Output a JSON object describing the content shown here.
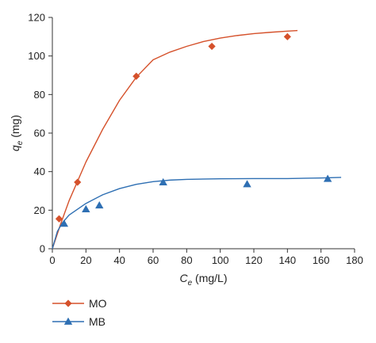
{
  "chart_data": {
    "type": "scatter",
    "title": "",
    "xlabel": "C_e (mg/L)",
    "xlabel_symbol": "C",
    "xlabel_subscript": "e",
    "xlabel_unit": " (mg/L)",
    "ylabel": "q_e (mg)",
    "ylabel_symbol": "q",
    "ylabel_subscript": "e",
    "ylabel_unit": " (mg)",
    "xlim": [
      0,
      180
    ],
    "ylim": [
      0,
      120
    ],
    "x_ticks": [
      0,
      20,
      40,
      60,
      80,
      100,
      120,
      140,
      160,
      180
    ],
    "y_ticks": [
      0,
      20,
      40,
      60,
      80,
      100,
      120
    ],
    "grid": false,
    "legend_position": "bottom-left",
    "series": [
      {
        "name": "MO",
        "color": "#d5512b",
        "marker": "diamond",
        "points": [
          {
            "x": 4,
            "y": 15.5
          },
          {
            "x": 15,
            "y": 34.5
          },
          {
            "x": 50,
            "y": 89.5
          },
          {
            "x": 95,
            "y": 105
          },
          {
            "x": 140,
            "y": 110
          }
        ],
        "fit_curve": [
          {
            "x": 0,
            "y": 0
          },
          {
            "x": 5,
            "y": 13
          },
          {
            "x": 10,
            "y": 25
          },
          {
            "x": 20,
            "y": 45
          },
          {
            "x": 30,
            "y": 62
          },
          {
            "x": 40,
            "y": 77
          },
          {
            "x": 50,
            "y": 89
          },
          {
            "x": 60,
            "y": 98
          },
          {
            "x": 70,
            "y": 102
          },
          {
            "x": 80,
            "y": 105
          },
          {
            "x": 90,
            "y": 107.5
          },
          {
            "x": 100,
            "y": 109.3
          },
          {
            "x": 110,
            "y": 110.6
          },
          {
            "x": 120,
            "y": 111.6
          },
          {
            "x": 130,
            "y": 112.3
          },
          {
            "x": 140,
            "y": 112.9
          },
          {
            "x": 146,
            "y": 113.2
          }
        ]
      },
      {
        "name": "MB",
        "color": "#2e6fb3",
        "marker": "triangle",
        "points": [
          {
            "x": 7,
            "y": 13
          },
          {
            "x": 20,
            "y": 20.5
          },
          {
            "x": 28,
            "y": 22.5
          },
          {
            "x": 66,
            "y": 34.5
          },
          {
            "x": 116,
            "y": 33.5
          },
          {
            "x": 164,
            "y": 36.3
          }
        ],
        "fit_curve": [
          {
            "x": 0,
            "y": 0
          },
          {
            "x": 3,
            "y": 9
          },
          {
            "x": 6,
            "y": 13.5
          },
          {
            "x": 10,
            "y": 17.5
          },
          {
            "x": 20,
            "y": 23.5
          },
          {
            "x": 30,
            "y": 28
          },
          {
            "x": 40,
            "y": 31.2
          },
          {
            "x": 50,
            "y": 33.4
          },
          {
            "x": 60,
            "y": 34.8
          },
          {
            "x": 70,
            "y": 35.6
          },
          {
            "x": 80,
            "y": 36
          },
          {
            "x": 100,
            "y": 36.3
          },
          {
            "x": 120,
            "y": 36.4
          },
          {
            "x": 140,
            "y": 36.4
          },
          {
            "x": 160,
            "y": 36.7
          },
          {
            "x": 172,
            "y": 37
          }
        ]
      }
    ]
  }
}
